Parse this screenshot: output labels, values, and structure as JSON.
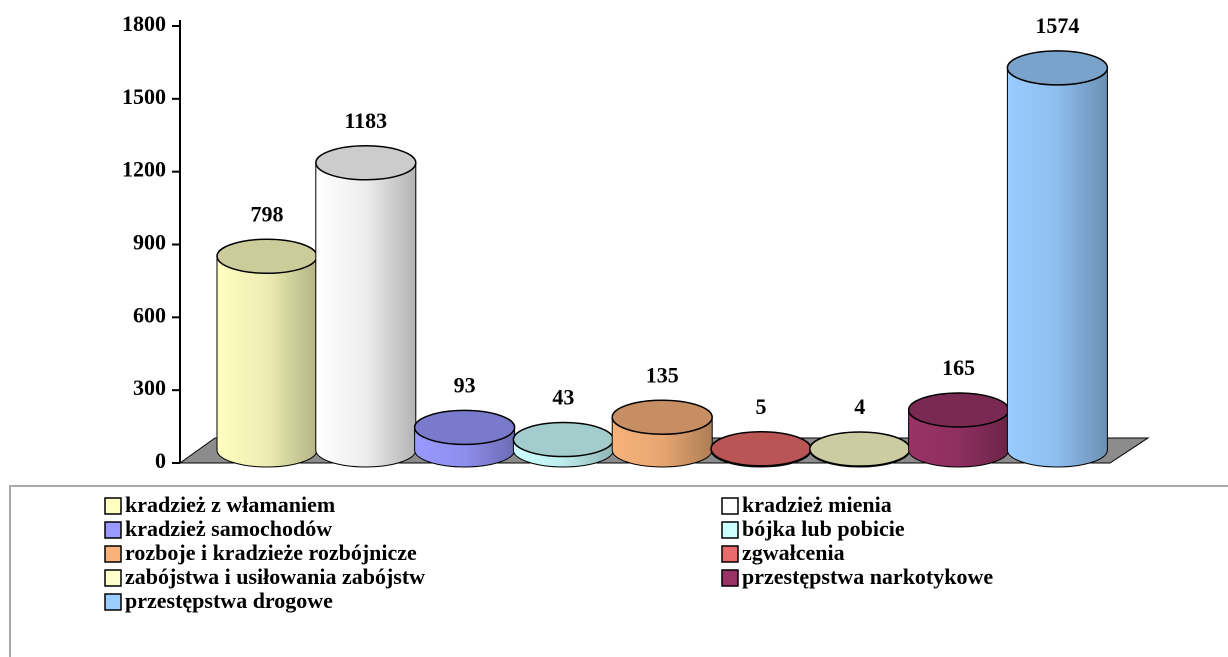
{
  "chart_data": {
    "type": "bar",
    "ylim": [
      0,
      1800
    ],
    "yticks": [
      0,
      300,
      600,
      900,
      1200,
      1500,
      1800
    ],
    "legend": "bottom",
    "series": [
      {
        "name": "kradzież z włamaniem",
        "color": "#ffffc0",
        "values": [
          798
        ]
      },
      {
        "name": "kradzież mienia",
        "color": "#ffffff",
        "values": [
          1183
        ]
      },
      {
        "name": "kradzież samochodów",
        "color": "#9999ff",
        "values": [
          93
        ]
      },
      {
        "name": "bójka lub pobicie",
        "color": "#ccffff",
        "values": [
          43
        ]
      },
      {
        "name": "rozboje i kradzieże rozbójnicze",
        "color": "#f8b27a",
        "values": [
          135
        ]
      },
      {
        "name": "zgwałcenia",
        "color": "#e86a6a",
        "values": [
          5
        ]
      },
      {
        "name": "zabójstwa i usiłowania zabójstw",
        "color": "#ffffcc",
        "values": [
          4
        ]
      },
      {
        "name": "przestępstwa narkotykowe",
        "color": "#993366",
        "values": [
          165
        ]
      },
      {
        "name": "przestępstwa drogowe",
        "color": "#99ccff",
        "values": [
          1574
        ]
      }
    ]
  }
}
